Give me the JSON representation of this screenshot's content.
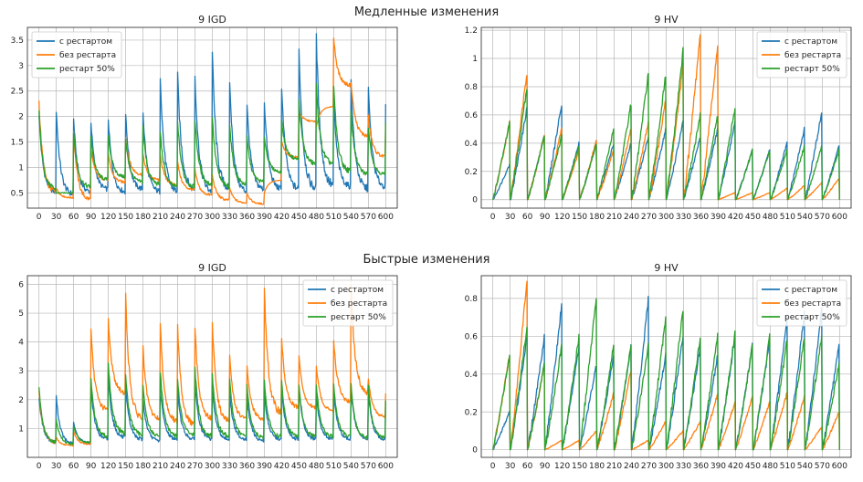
{
  "figure": {
    "top_title": "Медленные изменения",
    "bottom_title": "Быстрые изменения"
  },
  "colors": {
    "blue": "#1f77b4",
    "orange": "#ff7f0e",
    "green": "#2ca02c"
  },
  "chart_data": [
    {
      "id": "slow_igd",
      "type": "line",
      "title": "9 IGD",
      "xticks": [
        0,
        30,
        60,
        90,
        120,
        150,
        180,
        210,
        240,
        270,
        300,
        330,
        360,
        390,
        420,
        450,
        480,
        510,
        540,
        570,
        600
      ],
      "yticks": [
        0.5,
        1.0,
        1.5,
        2.0,
        2.5,
        3.0,
        3.5
      ],
      "ylim": [
        0.2,
        3.75
      ],
      "legend_position": "top-left",
      "series": [
        {
          "name": "с рестартом",
          "color": "#1f77b4",
          "mode": "igd",
          "peaks": [
            2.05,
            2.1,
            1.95,
            1.9,
            1.95,
            2.05,
            2.1,
            2.8,
            2.8,
            2.8,
            3.25,
            2.7,
            2.25,
            2.3,
            2.6,
            3.3,
            3.6,
            2.3,
            2.7,
            2.55,
            2.2
          ],
          "floors": [
            0.5,
            0.45,
            0.5,
            0.55,
            0.5,
            0.55,
            0.5,
            0.5,
            0.55,
            0.5,
            0.55,
            0.5,
            0.55,
            0.55,
            0.55,
            0.55,
            0.6,
            0.6,
            0.55,
            0.6,
            0.65
          ]
        },
        {
          "name": "без рестарта",
          "color": "#ff7f0e",
          "mode": "igd",
          "peaks": [
            2.3,
            0.6,
            1.7,
            1.35,
            1.25,
            1.6,
            1.25,
            1.25,
            1.1,
            0.95,
            0.85,
            0.6,
            0.5,
            0.5,
            1.5,
            2.1,
            1.8,
            3.55,
            2.7,
            2.0,
            1.8
          ],
          "floors": [
            0.5,
            0.4,
            0.35,
            0.75,
            0.7,
            0.85,
            0.75,
            0.65,
            0.55,
            0.45,
            0.35,
            0.3,
            0.28,
            0.75,
            1.2,
            1.9,
            2.2,
            2.6,
            1.6,
            1.2,
            0.9
          ]
        },
        {
          "name": "рестарт 50%",
          "color": "#2ca02c",
          "mode": "igd",
          "peaks": [
            2.1,
            0.5,
            1.7,
            1.6,
            1.65,
            1.55,
            1.8,
            1.7,
            1.9,
            1.95,
            2.0,
            1.85,
            1.6,
            1.6,
            1.9,
            2.3,
            2.6,
            2.6,
            2.1,
            1.8,
            1.85
          ],
          "floors": [
            0.55,
            0.5,
            0.6,
            0.75,
            0.8,
            0.7,
            0.65,
            0.6,
            0.6,
            0.65,
            0.6,
            0.65,
            0.7,
            0.9,
            1.15,
            1.05,
            1.05,
            0.9,
            0.85,
            0.85,
            0.9
          ]
        }
      ]
    },
    {
      "id": "slow_hv",
      "type": "line",
      "title": "9 HV",
      "xticks": [
        0,
        30,
        60,
        90,
        120,
        150,
        180,
        210,
        240,
        270,
        300,
        330,
        360,
        390,
        420,
        450,
        480,
        510,
        540,
        570,
        600
      ],
      "yticks": [
        0.0,
        0.2,
        0.4,
        0.6,
        0.8,
        1.0,
        1.2
      ],
      "ylim": [
        -0.06,
        1.22
      ],
      "legend_position": "top-right",
      "series": [
        {
          "name": "с рестартом",
          "color": "#1f77b4",
          "mode": "hv",
          "tops": [
            0.25,
            0.65,
            0.45,
            0.68,
            0.4,
            0.4,
            0.4,
            0.4,
            0.45,
            0.5,
            0.55,
            0.45,
            0.5,
            0.55,
            0.35,
            0.35,
            0.4,
            0.5,
            0.62,
            0.38,
            0.4
          ]
        },
        {
          "name": "без рестарта",
          "color": "#ff7f0e",
          "mode": "hv",
          "tops": [
            0.55,
            0.9,
            0.45,
            0.5,
            0.35,
            0.42,
            0.35,
            0.5,
            0.55,
            0.7,
            0.95,
            1.18,
            1.1,
            0.05,
            0.05,
            0.05,
            0.08,
            0.1,
            0.12,
            0.15,
            0.2
          ]
        },
        {
          "name": "рестарт 50%",
          "color": "#2ca02c",
          "mode": "hv",
          "tops": [
            0.55,
            0.8,
            0.45,
            0.45,
            0.38,
            0.4,
            0.5,
            0.68,
            0.9,
            0.88,
            1.05,
            0.6,
            0.6,
            0.65,
            0.35,
            0.35,
            0.35,
            0.38,
            0.38,
            0.35,
            0.3
          ]
        }
      ]
    },
    {
      "id": "fast_igd",
      "type": "line",
      "title": "9 IGD",
      "xticks": [
        0,
        30,
        60,
        90,
        120,
        150,
        180,
        210,
        240,
        270,
        300,
        330,
        360,
        390,
        420,
        450,
        480,
        510,
        540,
        570,
        600
      ],
      "yticks": [
        1,
        2,
        3,
        4,
        5,
        6
      ],
      "ylim": [
        0.0,
        6.3
      ],
      "legend_position": "top-right",
      "series": [
        {
          "name": "с рестартом",
          "color": "#1f77b4",
          "mode": "igd",
          "peaks": [
            2.1,
            2.1,
            1.2,
            2.4,
            2.8,
            2.4,
            2.0,
            2.4,
            2.3,
            2.6,
            2.4,
            2.2,
            2.1,
            2.2,
            2.3,
            2.4,
            2.2,
            2.3,
            2.4,
            2.3,
            1.9
          ],
          "floors": [
            0.5,
            0.45,
            0.5,
            0.6,
            0.65,
            0.6,
            0.55,
            0.6,
            0.6,
            0.6,
            0.6,
            0.6,
            0.55,
            0.6,
            0.6,
            0.6,
            0.6,
            0.6,
            0.6,
            0.6,
            0.6
          ]
        },
        {
          "name": "без рестарта",
          "color": "#ff7f0e",
          "mode": "igd",
          "peaks": [
            2.3,
            0.7,
            0.9,
            4.4,
            4.8,
            5.6,
            3.8,
            4.6,
            4.5,
            4.5,
            4.7,
            3.5,
            3.2,
            5.9,
            4.1,
            3.5,
            3.2,
            4.1,
            6.0,
            2.7,
            2.2
          ],
          "floors": [
            0.5,
            0.4,
            0.45,
            1.6,
            2.2,
            1.3,
            1.3,
            1.2,
            1.1,
            1.3,
            1.2,
            1.3,
            1.3,
            1.5,
            1.7,
            1.7,
            1.6,
            1.9,
            2.2,
            1.4,
            0.9
          ]
        },
        {
          "name": "рестарт 50%",
          "color": "#2ca02c",
          "mode": "igd",
          "peaks": [
            2.4,
            1.3,
            1.1,
            2.7,
            3.3,
            2.9,
            2.5,
            3.0,
            2.7,
            3.1,
            2.9,
            2.7,
            2.5,
            2.7,
            2.6,
            2.5,
            2.5,
            2.5,
            2.5,
            2.5,
            2.0
          ],
          "floors": [
            0.5,
            0.45,
            0.5,
            0.7,
            0.8,
            0.75,
            0.7,
            0.7,
            0.75,
            0.7,
            0.7,
            0.7,
            0.65,
            0.7,
            0.7,
            0.7,
            0.7,
            0.7,
            0.65,
            0.65,
            0.6
          ]
        }
      ]
    },
    {
      "id": "fast_hv",
      "type": "line",
      "title": "9 HV",
      "xticks": [
        0,
        30,
        60,
        90,
        120,
        150,
        180,
        210,
        240,
        270,
        300,
        330,
        360,
        390,
        420,
        450,
        480,
        510,
        540,
        570,
        600
      ],
      "yticks": [
        0.0,
        0.2,
        0.4,
        0.6,
        0.8
      ],
      "ylim": [
        -0.04,
        0.92
      ],
      "legend_position": "top-right",
      "series": [
        {
          "name": "с рестартом",
          "color": "#1f77b4",
          "mode": "hv",
          "tops": [
            0.2,
            0.6,
            0.6,
            0.77,
            0.55,
            0.45,
            0.5,
            0.55,
            0.8,
            0.5,
            0.6,
            0.55,
            0.5,
            0.6,
            0.55,
            0.58,
            0.7,
            0.72,
            0.75,
            0.55,
            0.55
          ]
        },
        {
          "name": "без рестарта",
          "color": "#ff7f0e",
          "mode": "hv",
          "tops": [
            0.5,
            0.9,
            0.45,
            0.05,
            0.05,
            0.1,
            0.3,
            0.42,
            0.05,
            0.15,
            0.1,
            0.15,
            0.3,
            0.25,
            0.28,
            0.25,
            0.3,
            0.28,
            0.12,
            0.2,
            0.2
          ]
        },
        {
          "name": "рестарт 50%",
          "color": "#2ca02c",
          "mode": "hv",
          "tops": [
            0.5,
            0.65,
            0.45,
            0.55,
            0.6,
            0.82,
            0.55,
            0.55,
            0.55,
            0.7,
            0.75,
            0.6,
            0.6,
            0.62,
            0.55,
            0.6,
            0.58,
            0.6,
            0.6,
            0.45,
            0.45
          ]
        }
      ]
    }
  ]
}
